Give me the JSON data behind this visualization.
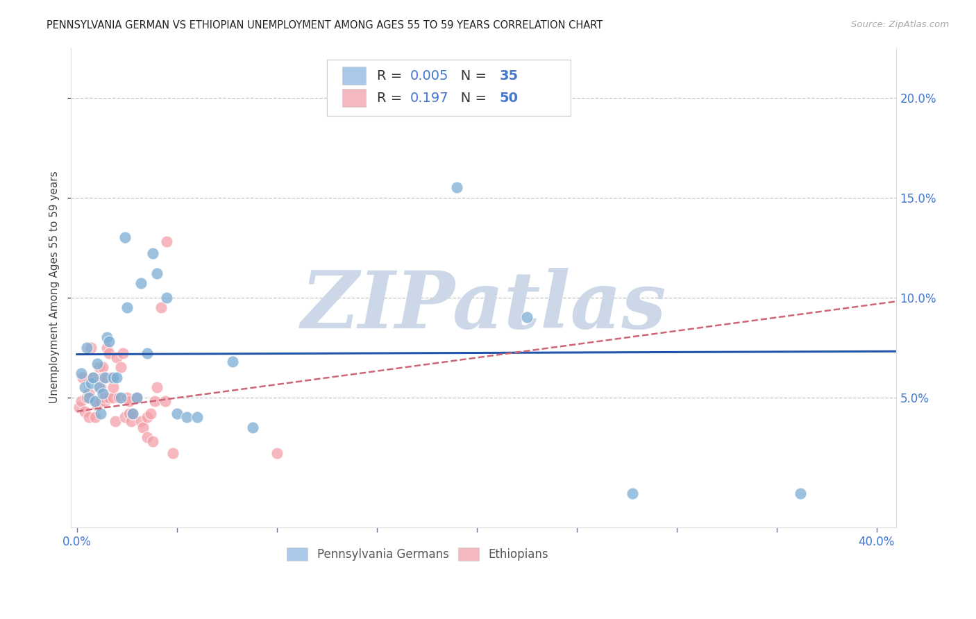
{
  "title": "PENNSYLVANIA GERMAN VS ETHIOPIAN UNEMPLOYMENT AMONG AGES 55 TO 59 YEARS CORRELATION CHART",
  "source": "Source: ZipAtlas.com",
  "ylabel": "Unemployment Among Ages 55 to 59 years",
  "xlim": [
    -0.003,
    0.41
  ],
  "ylim": [
    -0.015,
    0.225
  ],
  "yticks": [
    0.05,
    0.1,
    0.15,
    0.2
  ],
  "yticklabels": [
    "5.0%",
    "10.0%",
    "15.0%",
    "20.0%"
  ],
  "blue_color": "#7aadd4",
  "pink_color": "#f4a0a8",
  "blue_line_color": "#2255aa",
  "pink_line_color": "#cc6677",
  "legend_blue_color": "#aac8e8",
  "legend_pink_color": "#f4b8c0",
  "R_blue": "0.005",
  "N_blue": "35",
  "R_pink": "0.197",
  "N_pink": "50",
  "watermark": "ZIPatlas",
  "watermark_color": "#ccd8e8",
  "blue_points_x": [
    0.002,
    0.004,
    0.005,
    0.006,
    0.007,
    0.008,
    0.009,
    0.01,
    0.011,
    0.012,
    0.013,
    0.014,
    0.015,
    0.016,
    0.018,
    0.02,
    0.022,
    0.024,
    0.025,
    0.028,
    0.03,
    0.032,
    0.035,
    0.038,
    0.04,
    0.045,
    0.05,
    0.055,
    0.06,
    0.078,
    0.088,
    0.19,
    0.225,
    0.278,
    0.362
  ],
  "blue_points_y": [
    0.062,
    0.055,
    0.075,
    0.05,
    0.057,
    0.06,
    0.048,
    0.067,
    0.055,
    0.042,
    0.052,
    0.06,
    0.08,
    0.078,
    0.06,
    0.06,
    0.05,
    0.13,
    0.095,
    0.042,
    0.05,
    0.107,
    0.072,
    0.122,
    0.112,
    0.1,
    0.042,
    0.04,
    0.04,
    0.068,
    0.035,
    0.155,
    0.09,
    0.002,
    0.002
  ],
  "pink_points_x": [
    0.001,
    0.002,
    0.003,
    0.004,
    0.005,
    0.006,
    0.006,
    0.007,
    0.008,
    0.009,
    0.01,
    0.011,
    0.012,
    0.012,
    0.013,
    0.013,
    0.014,
    0.014,
    0.015,
    0.015,
    0.016,
    0.016,
    0.017,
    0.018,
    0.018,
    0.019,
    0.02,
    0.021,
    0.022,
    0.023,
    0.024,
    0.025,
    0.026,
    0.026,
    0.027,
    0.028,
    0.03,
    0.032,
    0.033,
    0.035,
    0.035,
    0.037,
    0.038,
    0.039,
    0.04,
    0.042,
    0.044,
    0.045,
    0.048,
    0.1
  ],
  "pink_points_y": [
    0.045,
    0.048,
    0.06,
    0.043,
    0.05,
    0.052,
    0.04,
    0.075,
    0.06,
    0.04,
    0.046,
    0.065,
    0.048,
    0.055,
    0.065,
    0.06,
    0.048,
    0.05,
    0.06,
    0.075,
    0.05,
    0.072,
    0.06,
    0.05,
    0.055,
    0.038,
    0.07,
    0.05,
    0.065,
    0.072,
    0.04,
    0.05,
    0.048,
    0.042,
    0.038,
    0.042,
    0.05,
    0.038,
    0.035,
    0.04,
    0.03,
    0.042,
    0.028,
    0.048,
    0.055,
    0.095,
    0.048,
    0.128,
    0.022,
    0.022
  ],
  "blue_trend_x": [
    0.0,
    0.41
  ],
  "blue_trend_y": [
    0.0715,
    0.073
  ],
  "pink_trend_x": [
    0.0,
    0.41
  ],
  "pink_trend_y": [
    0.043,
    0.098
  ],
  "background_color": "#ffffff",
  "grid_color": "#bbbbbb",
  "tick_color": "#4477cc",
  "text_color": "#333333",
  "axis_color": "#dddddd"
}
